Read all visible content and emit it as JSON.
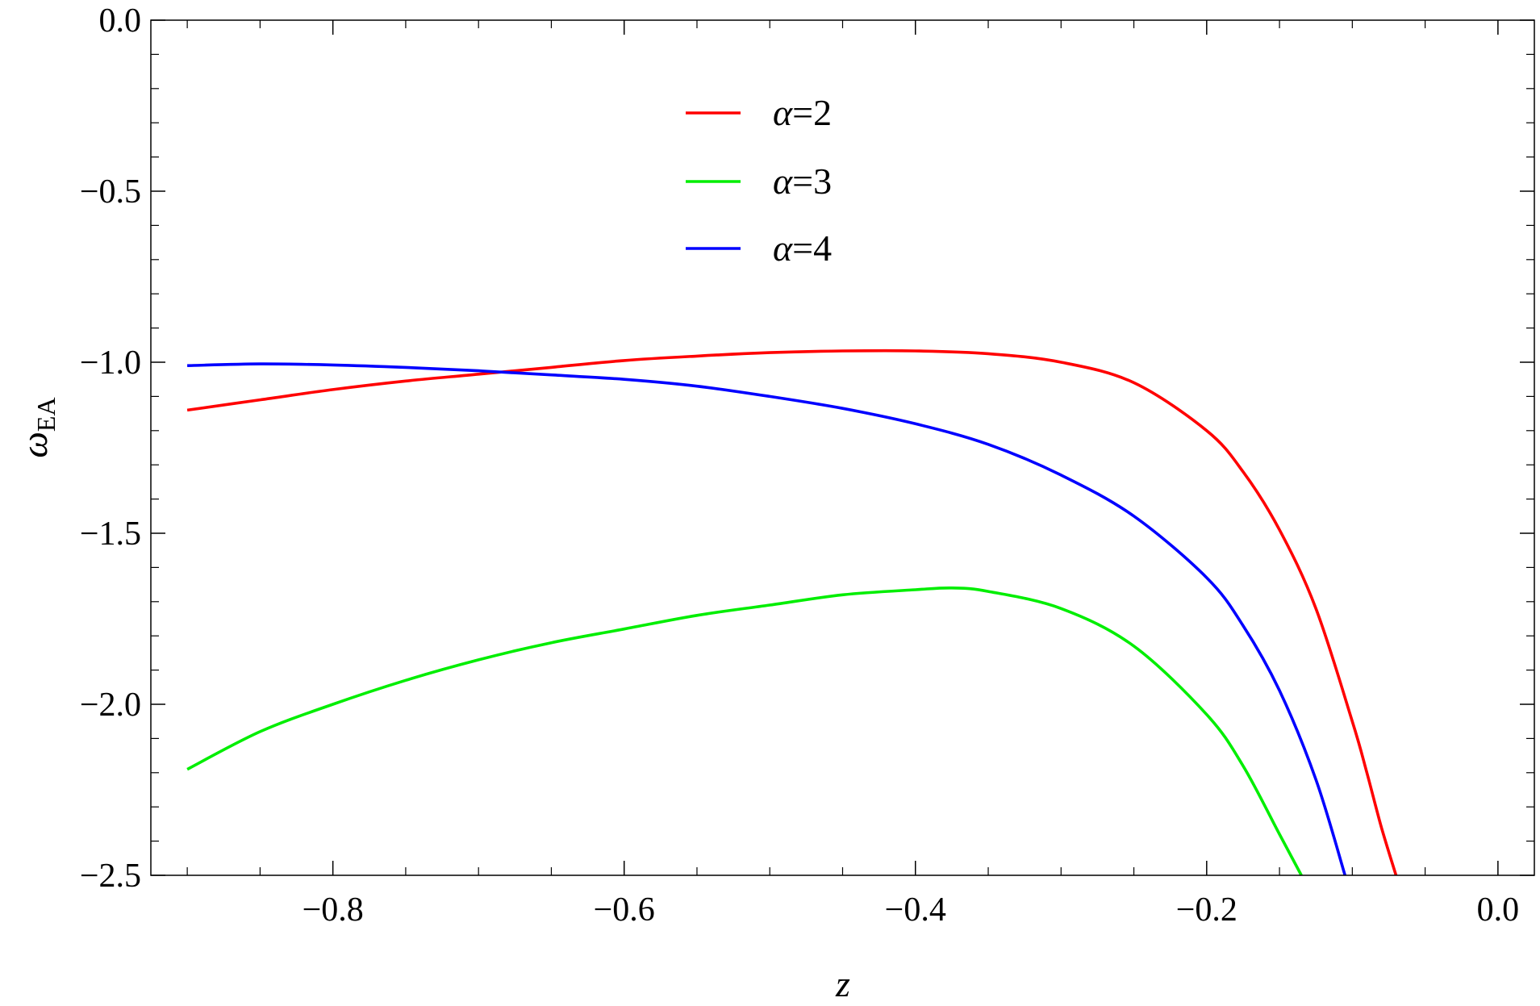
{
  "chart_data": {
    "type": "line",
    "xlabel": "z",
    "ylabel": {
      "main": "ω",
      "subscript": "EA"
    },
    "xlim": [
      -0.925,
      0.025
    ],
    "ylim": [
      -2.5,
      0.0
    ],
    "x_ticks": [
      -0.8,
      -0.6,
      -0.4,
      -0.2,
      0.0
    ],
    "x_tick_labels": [
      "−0.8",
      "−0.6",
      "−0.4",
      "−0.2",
      "0.0"
    ],
    "y_ticks": [
      0.0,
      -0.5,
      -1.0,
      -1.5,
      -2.0,
      -2.5
    ],
    "y_tick_labels": [
      "0.0",
      "−0.5",
      "−1.0",
      "−1.5",
      "−2.0",
      "−2.5"
    ],
    "grid": false,
    "legend_position": "top-center",
    "series": [
      {
        "name": "α=2",
        "color": "#ff0000",
        "x": [
          -0.9,
          -0.85,
          -0.8,
          -0.75,
          -0.7,
          -0.65,
          -0.6,
          -0.55,
          -0.5,
          -0.45,
          -0.4,
          -0.35,
          -0.3,
          -0.25,
          -0.2,
          -0.175,
          -0.15,
          -0.125,
          -0.1,
          -0.09,
          -0.08,
          -0.07
        ],
        "y": [
          -1.14,
          -1.11,
          -1.08,
          -1.055,
          -1.035,
          -1.015,
          -0.995,
          -0.982,
          -0.972,
          -0.967,
          -0.967,
          -0.975,
          -1.0,
          -1.06,
          -1.2,
          -1.32,
          -1.49,
          -1.72,
          -2.05,
          -2.2,
          -2.36,
          -2.5
        ]
      },
      {
        "name": "α=3",
        "color": "#00ee00",
        "x": [
          -0.9,
          -0.85,
          -0.8,
          -0.75,
          -0.7,
          -0.65,
          -0.6,
          -0.55,
          -0.5,
          -0.45,
          -0.4,
          -0.375,
          -0.35,
          -0.3,
          -0.25,
          -0.2,
          -0.175,
          -0.15,
          -0.135
        ],
        "y": [
          -2.19,
          -2.08,
          -2.0,
          -1.93,
          -1.87,
          -1.82,
          -1.78,
          -1.74,
          -1.71,
          -1.68,
          -1.665,
          -1.66,
          -1.67,
          -1.72,
          -1.83,
          -2.03,
          -2.18,
          -2.38,
          -2.5
        ]
      },
      {
        "name": "α=4",
        "color": "#0000ff",
        "x": [
          -0.9,
          -0.85,
          -0.8,
          -0.75,
          -0.7,
          -0.65,
          -0.6,
          -0.55,
          -0.5,
          -0.45,
          -0.4,
          -0.35,
          -0.3,
          -0.25,
          -0.2,
          -0.175,
          -0.15,
          -0.125,
          -0.105
        ],
        "y": [
          -1.01,
          -1.005,
          -1.008,
          -1.015,
          -1.025,
          -1.037,
          -1.05,
          -1.07,
          -1.1,
          -1.135,
          -1.18,
          -1.24,
          -1.33,
          -1.45,
          -1.63,
          -1.77,
          -1.96,
          -2.22,
          -2.5
        ]
      }
    ]
  }
}
